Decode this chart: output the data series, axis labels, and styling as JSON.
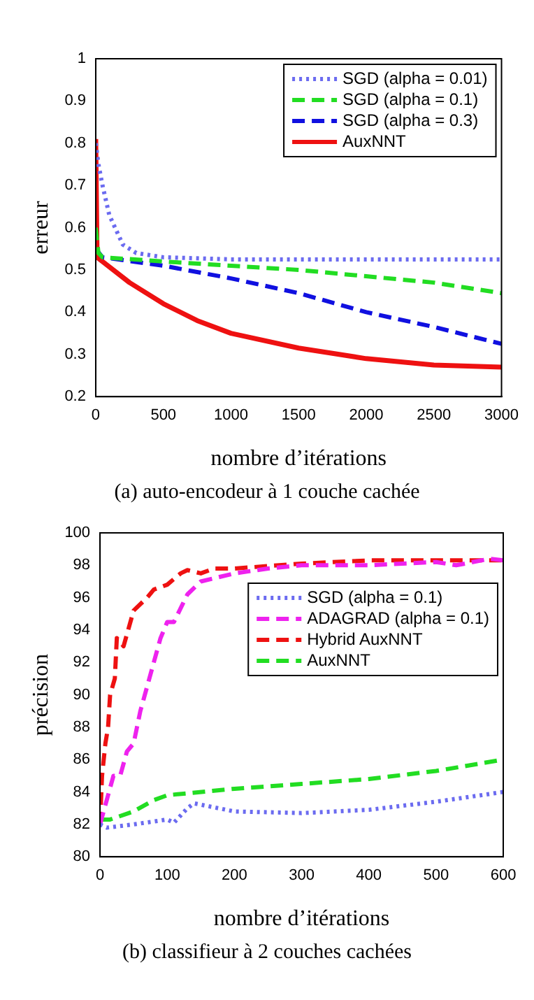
{
  "chart_data": [
    {
      "type": "line",
      "xlabel": "nombre d’itérations",
      "ylabel": "erreur",
      "annotations": [
        "(a) auto-encodeur à 1 couche cachée"
      ],
      "xlim": [
        0,
        3000
      ],
      "xticks": [
        0,
        500,
        1000,
        1500,
        2000,
        2500,
        3000
      ],
      "ylim": [
        0.2,
        1
      ],
      "yticks": [
        0.2,
        0.3,
        0.4,
        0.5,
        0.6,
        0.7,
        0.8,
        0.9,
        1
      ],
      "legend": "top right",
      "grid": false,
      "marker": "none",
      "series": [
        {
          "name": "SGD (alpha = 0.01)",
          "color": "#6b6bf0",
          "line_style": "dotted",
          "x": [
            0,
            20,
            50,
            100,
            200,
            300,
            500,
            1000,
            2000,
            3000
          ],
          "values": [
            0.8,
            0.75,
            0.7,
            0.63,
            0.56,
            0.54,
            0.53,
            0.525,
            0.525,
            0.525
          ]
        },
        {
          "name": "SGD (alpha = 0.1)",
          "color": "#22dd22",
          "line_style": "dashed",
          "x": [
            0,
            20,
            50,
            500,
            1000,
            1500,
            2000,
            2500,
            3000
          ],
          "values": [
            0.6,
            0.54,
            0.53,
            0.52,
            0.51,
            0.5,
            0.485,
            0.47,
            0.445
          ]
        },
        {
          "name": "SGD (alpha = 0.3)",
          "color": "#1010e0",
          "line_style": "dashed",
          "x": [
            0,
            50,
            500,
            1000,
            1500,
            2000,
            2500,
            3000
          ],
          "values": [
            0.55,
            0.53,
            0.51,
            0.48,
            0.445,
            0.4,
            0.365,
            0.325
          ]
        },
        {
          "name": "AuxNNT",
          "color": "#ee1111",
          "line_style": "solid",
          "x": [
            0,
            10,
            50,
            250,
            500,
            750,
            1000,
            1500,
            2000,
            2500,
            3000
          ],
          "values": [
            0.81,
            0.53,
            0.52,
            0.47,
            0.42,
            0.38,
            0.35,
            0.315,
            0.29,
            0.275,
            0.27
          ]
        }
      ]
    },
    {
      "type": "line",
      "xlabel": "nombre d’itérations",
      "ylabel": "précision",
      "annotations": [
        "(b) classifieur à 2 couches cachées"
      ],
      "xlim": [
        0,
        600
      ],
      "xticks": [
        0,
        100,
        200,
        300,
        400,
        500,
        600
      ],
      "ylim": [
        80,
        100
      ],
      "yticks": [
        80,
        82,
        84,
        86,
        88,
        90,
        92,
        94,
        96,
        98,
        100
      ],
      "legend": "top right",
      "grid": false,
      "marker": "none",
      "series": [
        {
          "name": "SGD (alpha = 0.1)",
          "color": "#6b6bf0",
          "line_style": "dotted",
          "x": [
            0,
            10,
            50,
            100,
            110,
            130,
            140,
            200,
            300,
            400,
            500,
            600
          ],
          "values": [
            82,
            81.8,
            82,
            82.3,
            82.1,
            83,
            83.3,
            82.8,
            82.7,
            82.9,
            83.4,
            84
          ]
        },
        {
          "name": "ADAGRAD (alpha = 0.1)",
          "color": "#ee22ee",
          "line_style": "dashed",
          "x": [
            0,
            10,
            20,
            30,
            40,
            50,
            60,
            70,
            80,
            90,
            100,
            110,
            130,
            150,
            200,
            250,
            300,
            400,
            500,
            530,
            580,
            600
          ],
          "values": [
            82,
            83.5,
            85,
            85,
            86.5,
            87,
            89,
            90.5,
            92,
            93.5,
            94.5,
            94.5,
            96.2,
            97,
            97.5,
            97.8,
            98,
            98,
            98.2,
            98,
            98.4,
            98.3
          ]
        },
        {
          "name": "Hybrid AuxNNT",
          "color": "#ee1111",
          "line_style": "dashed",
          "x": [
            0,
            3,
            8,
            12,
            15,
            22,
            25,
            35,
            50,
            70,
            80,
            100,
            120,
            130,
            150,
            170,
            200,
            300,
            400,
            500,
            600
          ],
          "values": [
            82,
            85,
            87,
            88,
            90,
            91,
            93.5,
            93,
            95.2,
            96,
            96.5,
            96.8,
            97.5,
            97.7,
            97.5,
            97.8,
            97.8,
            98.1,
            98.3,
            98.3,
            98.3
          ]
        },
        {
          "name": "AuxNNT",
          "color": "#22dd22",
          "line_style": "dashed",
          "x": [
            0,
            15,
            50,
            80,
            100,
            200,
            300,
            400,
            500,
            600
          ],
          "values": [
            82.3,
            82.3,
            82.8,
            83.5,
            83.8,
            84.2,
            84.5,
            84.8,
            85.3,
            86
          ]
        }
      ]
    }
  ]
}
